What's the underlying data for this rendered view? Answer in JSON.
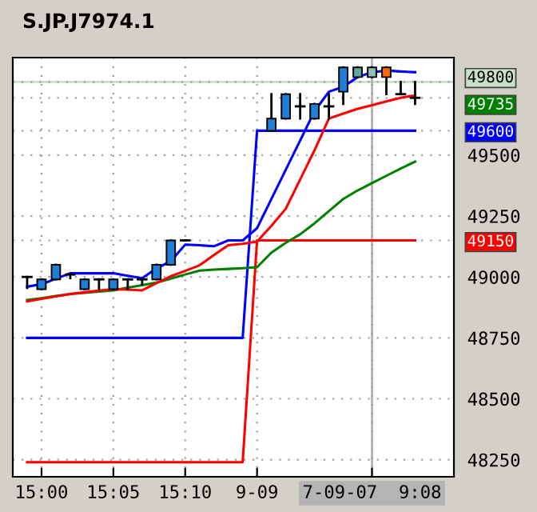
{
  "chart_data": {
    "type": "candlestick",
    "title": "S.JP.J7974.1",
    "categories": [
      null,
      "15:00",
      null,
      null,
      null,
      null,
      "15:05",
      null,
      null,
      null,
      null,
      "15:10",
      null,
      null,
      null,
      null,
      "9-09",
      null,
      null,
      null,
      null,
      null,
      null,
      null,
      "7-09-07  9:08",
      null,
      null,
      null,
      null,
      null
    ],
    "ylim": [
      48180,
      49900
    ],
    "yticks": [
      48250,
      48500,
      48750,
      49000,
      49150,
      49250,
      49500,
      49600,
      49735,
      49800
    ],
    "grid": true,
    "marker": "none",
    "line_style": "solid",
    "series": [
      {
        "type": "line",
        "color": "#0000ff",
        "values": [
          48750,
          48750,
          48750,
          48750,
          48750,
          48750,
          48750,
          48750,
          48750,
          48750,
          48750,
          48750,
          48750,
          48750,
          48750,
          48750,
          49600,
          49600,
          49600,
          49600,
          49600,
          49600,
          49600,
          49600,
          49600,
          49600,
          49600,
          49600,
          null,
          null
        ]
      },
      {
        "type": "line",
        "color": "#ff0000",
        "values": [
          48240,
          48240,
          48240,
          48240,
          48240,
          48240,
          48240,
          48240,
          48240,
          48240,
          48240,
          48240,
          48240,
          48240,
          48240,
          48240,
          49150,
          49150,
          49150,
          49150,
          49150,
          49150,
          49150,
          49150,
          49150,
          49150,
          49150,
          49150,
          null,
          null
        ]
      },
      {
        "type": "line",
        "color": "#008000",
        "values": [
          48905,
          48913,
          48922,
          48930,
          48935,
          48940,
          48945,
          48956,
          48966,
          48977,
          48993,
          49010,
          49026,
          49030,
          49033,
          49036,
          49040,
          49100,
          49140,
          49175,
          49220,
          49270,
          49320,
          49355,
          49385,
          49415,
          49445,
          49473,
          null,
          null
        ]
      },
      {
        "type": "line",
        "color": "#ff0000",
        "values": [
          48900,
          48910,
          48920,
          48930,
          48937,
          48944,
          48950,
          48948,
          48945,
          48975,
          49003,
          49025,
          49048,
          49090,
          49130,
          49136,
          49145,
          49210,
          49280,
          49400,
          49520,
          49650,
          49670,
          49690,
          49705,
          49720,
          49735,
          49745,
          null,
          null
        ]
      },
      {
        "type": "line",
        "color": "#0000ff",
        "values": [
          48960,
          48970,
          48993,
          49015,
          49015,
          49015,
          49015,
          49005,
          48995,
          49035,
          49065,
          49133,
          49130,
          49126,
          49150,
          49150,
          49200,
          49320,
          49440,
          49560,
          49680,
          49760,
          49780,
          49820,
          49840,
          49847,
          49843,
          49840,
          null,
          null
        ]
      },
      {
        "colors": [
          "#000000",
          "#1e7fd8",
          "#1e7fd8",
          "#000000",
          "#1e7fd8",
          "#000000",
          "#1e7fd8",
          "#000000",
          "#000000",
          "#1e7fd8",
          "#1e7fd8",
          "#000000",
          null,
          null,
          null,
          null,
          null,
          "#1e7fd8",
          "#1e7fd8",
          "#000000",
          "#1e7fd8",
          "#000000",
          "#1e7fd8",
          "#5fa8a0",
          "#8cc0b8",
          "#ff6a00",
          "#000000",
          "#000000",
          null,
          null
        ],
        "ohlc": [
          [
            49000,
            49000,
            48955,
            49000
          ],
          [
            48950,
            48990,
            48950,
            48990
          ],
          [
            48990,
            49050,
            48990,
            49050
          ],
          [
            49010,
            49010,
            48995,
            49010
          ],
          [
            48950,
            48990,
            48950,
            48990
          ],
          [
            48990,
            48990,
            48950,
            48990
          ],
          [
            48950,
            48990,
            48950,
            48990
          ],
          [
            48990,
            48990,
            48950,
            48990
          ],
          [
            48990,
            48990,
            48970,
            48990
          ],
          [
            48990,
            49050,
            48990,
            49050
          ],
          [
            49050,
            49150,
            49050,
            49150
          ],
          [
            49150,
            49150,
            49150,
            49150
          ],
          null,
          null,
          null,
          null,
          null,
          [
            49600,
            49750,
            49600,
            49650
          ],
          [
            49650,
            49750,
            49650,
            49750
          ],
          [
            49700,
            49750,
            49650,
            49700
          ],
          [
            49650,
            49710,
            49650,
            49710
          ],
          [
            49700,
            49750,
            49650,
            49700
          ],
          [
            49760,
            49860,
            49710,
            49860
          ],
          [
            49820,
            49860,
            49820,
            49860
          ],
          [
            49820,
            49860,
            49820,
            49860
          ],
          [
            49820,
            49860,
            49750,
            49860
          ],
          [
            49750,
            49800,
            49750,
            49750
          ],
          [
            49735,
            49800,
            49710,
            49735
          ],
          null,
          null
        ]
      }
    ],
    "ref_lines": [
      {
        "axis": "y",
        "value": 49800,
        "color": "#c8e0c8",
        "line_style": "solid"
      },
      {
        "axis": "x",
        "value": "7-09-07  9:08",
        "color": "#b4b4b4",
        "line_style": "solid"
      }
    ]
  }
}
